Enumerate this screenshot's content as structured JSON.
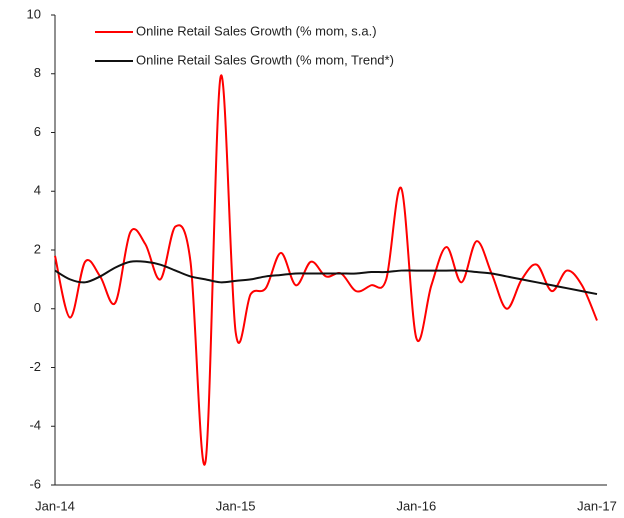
{
  "chart_data": {
    "type": "line",
    "categories": [
      "Jan-14",
      null,
      null,
      null,
      null,
      null,
      null,
      null,
      null,
      null,
      null,
      null,
      "Jan-15",
      null,
      null,
      null,
      null,
      null,
      null,
      null,
      null,
      null,
      null,
      null,
      "Jan-16",
      null,
      null,
      null,
      null,
      null,
      null,
      null,
      null,
      null,
      null,
      null,
      "Jan-17"
    ],
    "series": [
      {
        "name": "Online Retail Sales Growth (% mom, s.a.)",
        "color": "#ff0000",
        "values": [
          1.8,
          -0.3,
          1.6,
          1.1,
          0.2,
          2.6,
          2.2,
          1.0,
          2.8,
          1.6,
          -5.2,
          7.9,
          -0.8,
          0.5,
          0.7,
          1.9,
          0.8,
          1.6,
          1.1,
          1.2,
          0.6,
          0.8,
          1.0,
          4.1,
          -1.0,
          0.8,
          2.1,
          0.9,
          2.3,
          1.2,
          0.0,
          1.0,
          1.5,
          0.6,
          1.3,
          0.8,
          -0.4
        ]
      },
      {
        "name": "Online Retail Sales Growth (% mom, Trend*)",
        "color": "#111111",
        "values": [
          1.3,
          1.0,
          0.9,
          1.1,
          1.4,
          1.6,
          1.6,
          1.5,
          1.3,
          1.1,
          1.0,
          0.9,
          0.95,
          1.0,
          1.1,
          1.15,
          1.2,
          1.2,
          1.2,
          1.2,
          1.2,
          1.25,
          1.25,
          1.3,
          1.3,
          1.3,
          1.3,
          1.3,
          1.25,
          1.2,
          1.1,
          1.0,
          0.9,
          0.8,
          0.7,
          0.6,
          0.5
        ]
      }
    ],
    "ylim": [
      -6,
      10
    ],
    "yticks": [
      -6,
      -4,
      -2,
      0,
      2,
      4,
      6,
      8,
      10
    ],
    "grid": false,
    "legend": "top"
  }
}
